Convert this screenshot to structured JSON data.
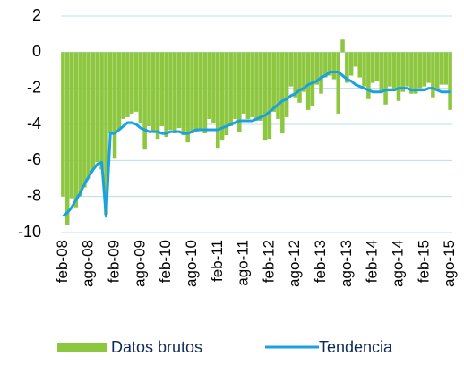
{
  "chart_data": {
    "type": "bar_line",
    "categories": [
      "feb-08",
      null,
      null,
      null,
      null,
      null,
      "ago-08",
      null,
      null,
      null,
      null,
      null,
      "feb-09",
      null,
      null,
      null,
      null,
      null,
      "ago-09",
      null,
      null,
      null,
      null,
      null,
      "feb-10",
      null,
      null,
      null,
      null,
      null,
      "ago-10",
      null,
      null,
      null,
      null,
      null,
      "feb-11",
      null,
      null,
      null,
      null,
      null,
      "ago-11",
      null,
      null,
      null,
      null,
      null,
      "feb-12",
      null,
      null,
      null,
      null,
      null,
      "ago-12",
      null,
      null,
      null,
      null,
      null,
      "feb-13",
      null,
      null,
      null,
      null,
      null,
      "ago-13",
      null,
      null,
      null,
      null,
      null,
      "feb-14",
      null,
      null,
      null,
      null,
      null,
      "ago-14",
      null,
      null,
      null,
      null,
      null,
      "feb-15",
      null,
      null,
      null,
      null,
      null,
      "ago-15"
    ],
    "series": [
      {
        "name": "Datos brutos",
        "type": "bar",
        "color": "#8dc63f",
        "values": [
          -8,
          -9.6,
          -8.1,
          -8.6,
          -8,
          -7.5,
          -7,
          -6.5,
          -6.1,
          -6.5,
          -9,
          -4.5,
          -5.9,
          -4.3,
          -3.7,
          -3.6,
          -3.4,
          -3.3,
          -3.9,
          -5.4,
          -4.1,
          -4.4,
          -4.8,
          -4.1,
          -4.7,
          -4.3,
          -4.5,
          -4.2,
          -4.6,
          -5,
          -4.5,
          -4.4,
          -4.3,
          -4.5,
          -3.7,
          -3.9,
          -5.3,
          -4.9,
          -4.6,
          -4.1,
          -3.7,
          -4.4,
          -3.4,
          -3.7,
          -3.6,
          -3.8,
          -3.8,
          -4.9,
          -4.8,
          -3.3,
          -3.7,
          -4.5,
          -3.6,
          -1.9,
          -2.5,
          -2.8,
          -2.2,
          -3.2,
          -3,
          -1.8,
          -2.3,
          -1.4,
          -1.3,
          -1.5,
          -3.4,
          0.7,
          -1.7,
          -1.3,
          -0.8,
          -1.4,
          -1.9,
          -2.6,
          -1.7,
          -1.6,
          -2.2,
          -2.9,
          -1.9,
          -2.1,
          -2.7,
          -2.2,
          -1.9,
          -2.3,
          -2.3,
          -2,
          -1.9,
          -1.7,
          -2.5,
          -2.1,
          -1.8,
          -1.8,
          -3.2
        ]
      },
      {
        "name": "Tendencia",
        "type": "line",
        "color": "#1ba1e2",
        "values": [
          -9.1,
          -8.9,
          -8.6,
          -8.2,
          -7.8,
          -7.3,
          -6.9,
          -6.5,
          -6.2,
          -6.1,
          -9.1,
          -4.5,
          -4.5,
          -4.3,
          -4.1,
          -3.9,
          -3.9,
          -4,
          -4.2,
          -4.3,
          -4.4,
          -4.4,
          -4.4,
          -4.5,
          -4.5,
          -4.4,
          -4.4,
          -4.4,
          -4.5,
          -4.5,
          -4.4,
          -4.3,
          -4.3,
          -4.3,
          -4.3,
          -4.3,
          -4.3,
          -4.2,
          -4.1,
          -4,
          -3.9,
          -3.8,
          -3.8,
          -3.8,
          -3.8,
          -3.7,
          -3.6,
          -3.5,
          -3.3,
          -3.1,
          -2.9,
          -2.7,
          -2.6,
          -2.4,
          -2.3,
          -2.1,
          -2,
          -1.8,
          -1.7,
          -1.6,
          -1.4,
          -1.3,
          -1.1,
          -1.1,
          -1.1,
          -1.3,
          -1.5,
          -1.6,
          -1.8,
          -1.9,
          -2,
          -2.1,
          -2.2,
          -2.2,
          -2.2,
          -2.1,
          -2.1,
          -2.1,
          -2,
          -2,
          -2,
          -2.1,
          -2.1,
          -2.1,
          -2.1,
          -2,
          -2,
          -2.1,
          -2.2,
          -2.2,
          -2.2
        ]
      }
    ],
    "ylim": [
      -10,
      2
    ],
    "yticks": [
      2,
      0,
      -2,
      -4,
      -6,
      -8,
      -10
    ],
    "grid": true,
    "legend": "bottom"
  }
}
